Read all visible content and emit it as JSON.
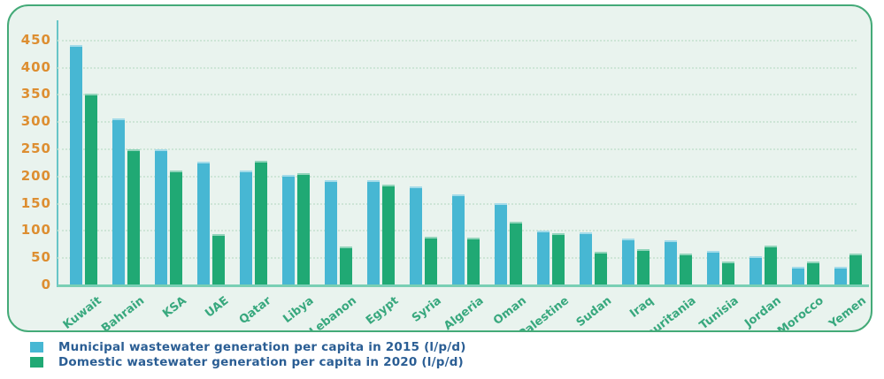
{
  "chart_data": {
    "type": "bar",
    "title": "",
    "xlabel": "",
    "ylabel": "",
    "categories": [
      "Kuwait",
      "Bahrain",
      "KSA",
      "UAE",
      "Qatar",
      "Libya",
      "Lebanon",
      "Egypt",
      "Syria",
      "Algeria",
      "Oman",
      "Palestine",
      "Sudan",
      "Iraq",
      "Mauritania",
      "Tunisia",
      "Jordan",
      "Morocco",
      "Yemen"
    ],
    "series": [
      {
        "name": "Municipal wastewater generation per capita in 2015 (l/p/d)",
        "color": "#47b7d3",
        "values": [
          440,
          305,
          248,
          226,
          210,
          201,
          192,
          192,
          180,
          166,
          150,
          99,
          96,
          85,
          81,
          61,
          52,
          32,
          32
        ]
      },
      {
        "name": "Domestic wastewater generation per capita in 2020 (l/p/d)",
        "color": "#20a974",
        "values": [
          350,
          248,
          210,
          92,
          227,
          205,
          70,
          183,
          88,
          86,
          115,
          94,
          60,
          65,
          57,
          43,
          72,
          42,
          57
        ]
      }
    ],
    "ylim": [
      0,
      450
    ],
    "yticks": [
      0,
      50,
      100,
      150,
      200,
      250,
      300,
      350,
      400,
      450
    ],
    "grid": "horizontal-dotted",
    "legend_position": "bottom-left"
  },
  "colors": {
    "panel_background": "#e9f3ee",
    "panel_border": "#44aa78",
    "bar_2015": "#47b7d3",
    "bar_2020": "#20a974",
    "y_tick_label": "#dd8e31",
    "x_tick_label": "#38a87e",
    "gridline": "#cde5d6",
    "y_axis_line": "#68c5c7",
    "x_axis_line": "#79cfb4",
    "legend_text": "#2b5e94"
  }
}
